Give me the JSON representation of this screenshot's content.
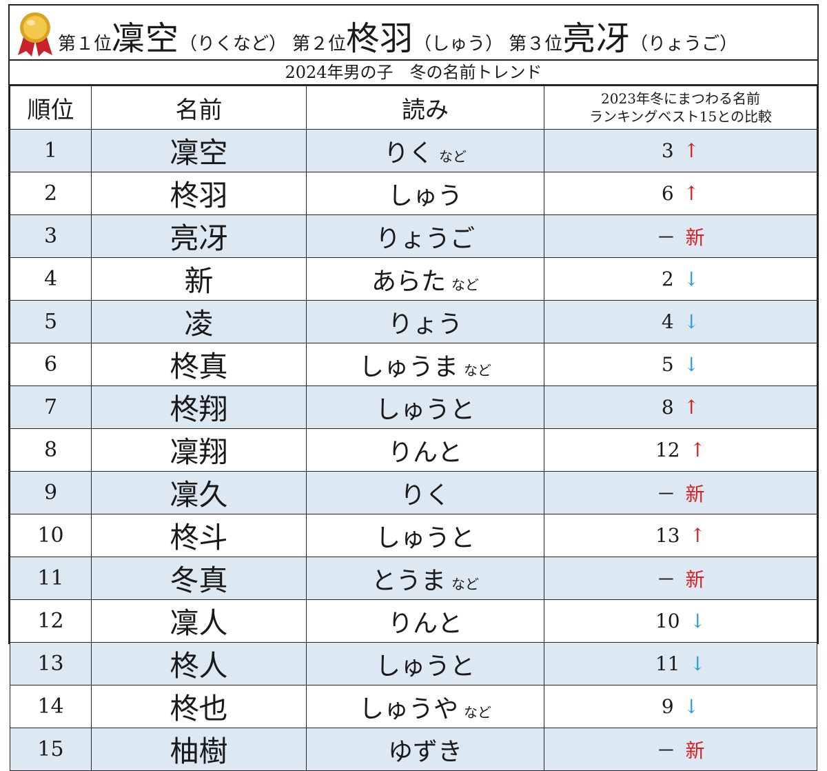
{
  "colors": {
    "up": "#d42020",
    "down": "#2a9fd6",
    "new": "#d42020",
    "shaded_row": "#dce9f2"
  },
  "banner": {
    "icon": "gold-medal-icon",
    "entries": [
      {
        "prefix": "第１位",
        "name": "凜空",
        "reading": "（りくなど）"
      },
      {
        "prefix": "第２位",
        "name": "柊羽",
        "reading": "（しゅう）"
      },
      {
        "prefix": "第３位",
        "name": "亮冴",
        "reading": "（りょうご）"
      }
    ]
  },
  "subtitle": "2024年男の子　冬の名前トレンド",
  "table": {
    "headers": {
      "rank": "順位",
      "name": "名前",
      "reading": "読み",
      "compare_line1": "2023年冬にまつわる名前",
      "compare_line2": "ランキングベスト15との比較"
    },
    "rows": [
      {
        "rank": "1",
        "name": "凜空",
        "reading": "りく",
        "nado": "など",
        "prev": "3",
        "mark": "↑"
      },
      {
        "rank": "2",
        "name": "柊羽",
        "reading": "しゅう",
        "nado": "",
        "prev": "6",
        "mark": "↑"
      },
      {
        "rank": "3",
        "name": "亮冴",
        "reading": "りょうご",
        "nado": "",
        "prev": "－",
        "mark": "新"
      },
      {
        "rank": "4",
        "name": "新",
        "reading": "あらた",
        "nado": "など",
        "prev": "2",
        "mark": "↓"
      },
      {
        "rank": "5",
        "name": "凌",
        "reading": "りょう",
        "nado": "",
        "prev": "4",
        "mark": "↓"
      },
      {
        "rank": "6",
        "name": "柊真",
        "reading": "しゅうま",
        "nado": "など",
        "prev": "5",
        "mark": "↓"
      },
      {
        "rank": "7",
        "name": "柊翔",
        "reading": "しゅうと",
        "nado": "",
        "prev": "8",
        "mark": "↑"
      },
      {
        "rank": "8",
        "name": "凜翔",
        "reading": "りんと",
        "nado": "",
        "prev": "12",
        "mark": "↑"
      },
      {
        "rank": "9",
        "name": "凜久",
        "reading": "りく",
        "nado": "",
        "prev": "－",
        "mark": "新"
      },
      {
        "rank": "10",
        "name": "柊斗",
        "reading": "しゅうと",
        "nado": "",
        "prev": "13",
        "mark": "↑"
      },
      {
        "rank": "11",
        "name": "冬真",
        "reading": "とうま",
        "nado": "など",
        "prev": "－",
        "mark": "新"
      },
      {
        "rank": "12",
        "name": "凜人",
        "reading": "りんと",
        "nado": "",
        "prev": "10",
        "mark": "↓"
      },
      {
        "rank": "13",
        "name": "柊人",
        "reading": "しゅうと",
        "nado": "",
        "prev": "11",
        "mark": "↓"
      },
      {
        "rank": "14",
        "name": "柊也",
        "reading": "しゅうや",
        "nado": "など",
        "prev": "9",
        "mark": "↓"
      },
      {
        "rank": "15",
        "name": "柚樹",
        "reading": "ゆずき",
        "nado": "",
        "prev": "－",
        "mark": "新"
      }
    ]
  }
}
